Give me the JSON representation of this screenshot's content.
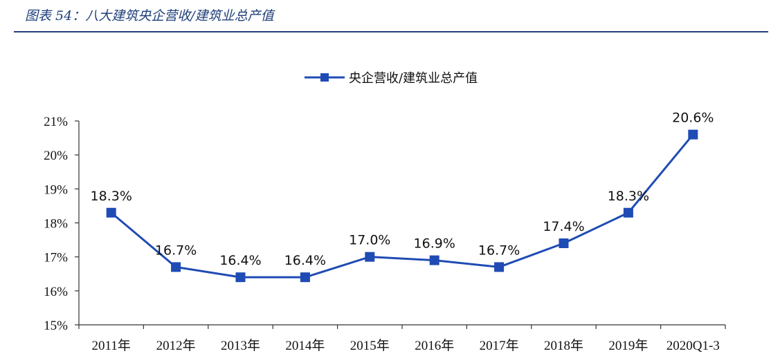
{
  "caption": "图表 54：八大建筑央企营收/建筑业总产值",
  "colors": {
    "series": "#1f4bb4",
    "caption": "#1f3f7a"
  },
  "chart_data": {
    "type": "line",
    "title": "",
    "xlabel": "",
    "ylabel": "",
    "categories": [
      "2011年",
      "2012年",
      "2013年",
      "2014年",
      "2015年",
      "2016年",
      "2017年",
      "2018年",
      "2019年",
      "2020Q1-3"
    ],
    "series": [
      {
        "name": "央企营收/建筑业总产值",
        "values": [
          18.3,
          16.7,
          16.4,
          16.4,
          17.0,
          16.9,
          16.7,
          17.4,
          18.3,
          20.6
        ],
        "labels": [
          "18.3%",
          "16.7%",
          "16.4%",
          "16.4%",
          "17.0%",
          "16.9%",
          "16.7%",
          "17.4%",
          "18.3%",
          "20.6%"
        ]
      }
    ],
    "ylim": [
      15,
      21
    ],
    "yticks": [
      15,
      16,
      17,
      18,
      19,
      20,
      21
    ],
    "ytick_labels": [
      "15%",
      "16%",
      "17%",
      "18%",
      "19%",
      "20%",
      "21%"
    ],
    "grid": false,
    "legend_position": "top"
  }
}
